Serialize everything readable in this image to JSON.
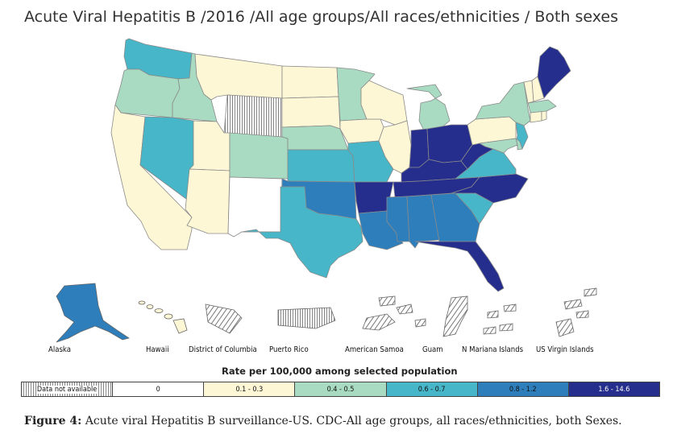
{
  "title": "Acute Viral Hepatitis B /2016 /All age groups/All races/ethnicities / Both sexes",
  "colors": {
    "not_available": "hatched",
    "zero": "#ffffff",
    "c1": "#fdf7d5",
    "c2": "#a8dbc1",
    "c3": "#46b6c8",
    "c4": "#2d7ebb",
    "c5": "#252e8c",
    "border": "#888888"
  },
  "legend": {
    "title": "Rate per 100,000 among selected population",
    "items": [
      {
        "label": "Data not available",
        "color": "hatched"
      },
      {
        "label": "0",
        "color": "#ffffff"
      },
      {
        "label": "0.1 - 0.3",
        "color": "#fdf7d5"
      },
      {
        "label": "0.4 - 0.5",
        "color": "#a8dbc1"
      },
      {
        "label": "0.6 - 0.7",
        "color": "#46b6c8"
      },
      {
        "label": "0.8 - 1.2",
        "color": "#2d7ebb"
      },
      {
        "label": "1.6 - 14.6",
        "color": "#252e8c"
      }
    ]
  },
  "territories": [
    {
      "name": "Alaska",
      "class": "0.8 - 1.2"
    },
    {
      "name": "Hawaii",
      "class": "0.1 - 0.3"
    },
    {
      "name": "District of Columbia",
      "class": "Data not available"
    },
    {
      "name": "Puerto Rico",
      "class": "Data not available"
    },
    {
      "name": "American Samoa",
      "class": "Data not available"
    },
    {
      "name": "Guam",
      "class": "Data not available"
    },
    {
      "name": "N Mariana Islands",
      "class": "Data not available"
    },
    {
      "name": "US Virgin Islands",
      "class": "Data not available"
    }
  ],
  "state_classes": {
    "WA": "0.6 - 0.7",
    "OR": "0.4 - 0.5",
    "CA": "0.1 - 0.3",
    "ID": "0.4 - 0.5",
    "NV": "0.6 - 0.7",
    "MT": "0.1 - 0.3",
    "WY": "Data not available",
    "UT": "0.1 - 0.3",
    "AZ": "0.1 - 0.3",
    "CO": "0.4 - 0.5",
    "NM": "0",
    "ND": "0.1 - 0.3",
    "SD": "0.1 - 0.3",
    "NE": "0.4 - 0.5",
    "KS": "0.6 - 0.7",
    "OK": "0.8 - 1.2",
    "TX": "0.6 - 0.7",
    "MN": "0.4 - 0.5",
    "IA": "0.1 - 0.3",
    "MO": "0.6 - 0.7",
    "AR": "1.6 - 14.6",
    "LA": "0.8 - 1.2",
    "WI": "0.1 - 0.3",
    "IL": "0.1 - 0.3",
    "MI": "0.4 - 0.5",
    "IN": "1.6 - 14.6",
    "OH": "1.6 - 14.6",
    "KY": "1.6 - 14.6",
    "TN": "1.6 - 14.6",
    "MS": "0.8 - 1.2",
    "AL": "0.8 - 1.2",
    "GA": "0.8 - 1.2",
    "FL": "1.6 - 14.6",
    "SC": "0.6 - 0.7",
    "NC": "1.6 - 14.6",
    "VA": "0.6 - 0.7",
    "WV": "1.6 - 14.6",
    "PA": "0.1 - 0.3",
    "NY": "0.4 - 0.5",
    "NJ": "0.6 - 0.7",
    "MD": "0.4 - 0.5",
    "DE": "0.4 - 0.5",
    "CT": "0.1 - 0.3",
    "RI": "0.1 - 0.3",
    "MA": "0.4 - 0.5",
    "VT": "0.1 - 0.3",
    "NH": "0.1 - 0.3",
    "ME": "1.6 - 14.6"
  },
  "caption": {
    "prefix": "Figure 4:",
    "text": " Acute viral Hepatitis B surveillance-US. CDC-All age groups, all races/ethnicities, both Sexes."
  }
}
